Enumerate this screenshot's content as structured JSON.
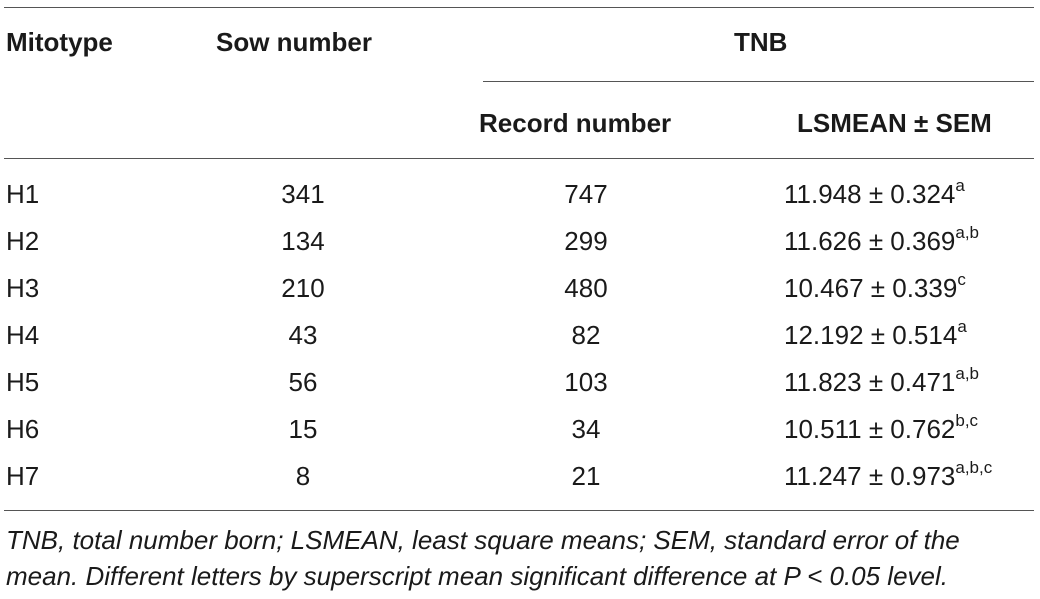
{
  "table": {
    "headers": {
      "mitotype": "Mitotype",
      "sow_number": "Sow number",
      "tnb": "TNB",
      "record_number": "Record number",
      "lsmean_sem": "LSMEAN ± SEM"
    },
    "rows": [
      {
        "mitotype": "H1",
        "sow_number": "341",
        "record_number": "747",
        "lsmean": "11.948 ± 0.324",
        "sup": "a"
      },
      {
        "mitotype": "H2",
        "sow_number": "134",
        "record_number": "299",
        "lsmean": "11.626 ± 0.369",
        "sup": "a,b"
      },
      {
        "mitotype": "H3",
        "sow_number": "210",
        "record_number": "480",
        "lsmean": "10.467 ± 0.339",
        "sup": "c"
      },
      {
        "mitotype": "H4",
        "sow_number": "43",
        "record_number": "82",
        "lsmean": "12.192 ± 0.514",
        "sup": "a"
      },
      {
        "mitotype": "H5",
        "sow_number": "56",
        "record_number": "103",
        "lsmean": "11.823 ± 0.471",
        "sup": "a,b"
      },
      {
        "mitotype": "H6",
        "sow_number": "15",
        "record_number": "34",
        "lsmean": "10.511 ± 0.762",
        "sup": "b,c"
      },
      {
        "mitotype": "H7",
        "sow_number": "8",
        "record_number": "21",
        "lsmean": "11.247 ± 0.973",
        "sup": "a,b,c"
      }
    ],
    "footnote": "TNB, total number born; LSMEAN, least square means; SEM, standard error of the mean. Different letters by superscript mean significant difference at P < 0.05 level."
  }
}
